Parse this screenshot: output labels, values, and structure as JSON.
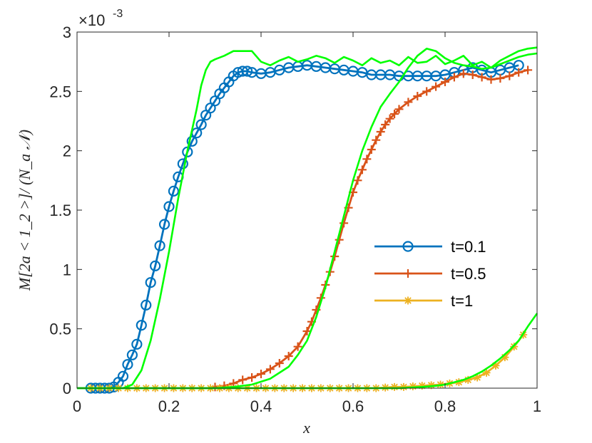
{
  "chart_data": {
    "type": "line",
    "xlabel": "x",
    "ylabel": "M[2a < 1_2 >]/ (N_a 𝒩)",
    "y_exponent_label": "×10",
    "y_exponent_value": "-3",
    "xlim": [
      0,
      1
    ],
    "ylim": [
      0,
      3
    ],
    "x_ticks": [
      0,
      0.2,
      0.4,
      0.6,
      0.8,
      1
    ],
    "x_tick_labels": [
      "0",
      "0.2",
      "0.4",
      "0.6",
      "0.8",
      "1"
    ],
    "y_ticks": [
      0,
      0.5,
      1,
      1.5,
      2,
      2.5,
      3
    ],
    "y_tick_labels": [
      "0",
      "0.5",
      "1",
      "1.5",
      "2",
      "2.5",
      "3"
    ],
    "grid": false,
    "legend_position": "right-middle",
    "series": [
      {
        "name": "t=0.1",
        "color": "#0072BD",
        "marker": "circle",
        "x": [
          0.03,
          0.04,
          0.05,
          0.06,
          0.07,
          0.08,
          0.09,
          0.1,
          0.11,
          0.12,
          0.13,
          0.14,
          0.15,
          0.16,
          0.17,
          0.18,
          0.19,
          0.2,
          0.21,
          0.22,
          0.23,
          0.24,
          0.25,
          0.26,
          0.27,
          0.28,
          0.29,
          0.3,
          0.31,
          0.32,
          0.33,
          0.34,
          0.35,
          0.36,
          0.37,
          0.38,
          0.4,
          0.42,
          0.44,
          0.46,
          0.48,
          0.5,
          0.52,
          0.54,
          0.56,
          0.58,
          0.6,
          0.62,
          0.64,
          0.66,
          0.68,
          0.7,
          0.72,
          0.74,
          0.76,
          0.78,
          0.8,
          0.82,
          0.84,
          0.86,
          0.88,
          0.9,
          0.92,
          0.94,
          0.96
        ],
        "values": [
          0,
          0,
          0,
          0,
          0,
          0.01,
          0.05,
          0.1,
          0.2,
          0.28,
          0.37,
          0.53,
          0.7,
          0.89,
          1.03,
          1.2,
          1.38,
          1.53,
          1.66,
          1.78,
          1.89,
          1.99,
          2.08,
          2.15,
          2.22,
          2.3,
          2.36,
          2.42,
          2.48,
          2.53,
          2.58,
          2.63,
          2.66,
          2.67,
          2.67,
          2.66,
          2.65,
          2.66,
          2.68,
          2.7,
          2.71,
          2.72,
          2.71,
          2.7,
          2.69,
          2.68,
          2.67,
          2.66,
          2.64,
          2.64,
          2.64,
          2.63,
          2.63,
          2.63,
          2.63,
          2.63,
          2.64,
          2.66,
          2.68,
          2.7,
          2.68,
          2.66,
          2.68,
          2.7,
          2.72
        ]
      },
      {
        "name": "t=0.5",
        "color": "#D95319",
        "marker": "plus",
        "x": [
          0.3,
          0.32,
          0.34,
          0.36,
          0.38,
          0.4,
          0.42,
          0.44,
          0.46,
          0.48,
          0.5,
          0.51,
          0.52,
          0.53,
          0.54,
          0.55,
          0.56,
          0.57,
          0.58,
          0.59,
          0.6,
          0.61,
          0.62,
          0.63,
          0.64,
          0.65,
          0.66,
          0.67,
          0.68,
          0.69,
          0.7,
          0.72,
          0.74,
          0.76,
          0.78,
          0.8,
          0.82,
          0.84,
          0.86,
          0.88,
          0.9,
          0.92,
          0.94,
          0.96,
          0.98
        ],
        "values": [
          0.01,
          0.02,
          0.04,
          0.07,
          0.09,
          0.12,
          0.16,
          0.21,
          0.27,
          0.35,
          0.48,
          0.56,
          0.66,
          0.76,
          0.87,
          0.98,
          1.11,
          1.25,
          1.39,
          1.52,
          1.65,
          1.75,
          1.84,
          1.93,
          2.01,
          2.09,
          2.16,
          2.22,
          2.27,
          2.31,
          2.35,
          2.41,
          2.46,
          2.5,
          2.54,
          2.58,
          2.62,
          2.65,
          2.64,
          2.62,
          2.6,
          2.61,
          2.63,
          2.66,
          2.68
        ]
      },
      {
        "name": "t=1",
        "color": "#EDB120",
        "marker": "asterisk",
        "x": [
          0.03,
          0.05,
          0.07,
          0.09,
          0.11,
          0.13,
          0.15,
          0.17,
          0.19,
          0.21,
          0.23,
          0.25,
          0.27,
          0.29,
          0.31,
          0.33,
          0.35,
          0.37,
          0.39,
          0.41,
          0.43,
          0.45,
          0.47,
          0.49,
          0.51,
          0.53,
          0.55,
          0.57,
          0.59,
          0.61,
          0.63,
          0.65,
          0.67,
          0.69,
          0.71,
          0.73,
          0.75,
          0.77,
          0.79,
          0.81,
          0.83,
          0.85,
          0.87,
          0.89,
          0.91,
          0.93,
          0.95,
          0.97
        ],
        "values": [
          0,
          0,
          0,
          0,
          0,
          0,
          0,
          0,
          0,
          0,
          0,
          0,
          0,
          0,
          0,
          0,
          0,
          0,
          0,
          0,
          0,
          0,
          0,
          0,
          0,
          0,
          0,
          0,
          0,
          0,
          0,
          0,
          0.005,
          0.01,
          0.01,
          0.015,
          0.02,
          0.025,
          0.03,
          0.04,
          0.05,
          0.07,
          0.09,
          0.13,
          0.19,
          0.26,
          0.35,
          0.45
        ]
      },
      {
        "name": "",
        "color": "#00FF00",
        "marker": "none",
        "x": [
          0,
          0.1,
          0.12,
          0.14,
          0.16,
          0.18,
          0.2,
          0.22,
          0.24,
          0.26,
          0.27,
          0.28,
          0.29,
          0.3,
          0.32,
          0.34,
          0.36,
          0.38,
          0.4,
          0.42,
          0.44,
          0.46,
          0.48,
          0.5,
          0.52,
          0.54,
          0.56,
          0.58,
          0.6,
          0.62,
          0.64,
          0.66,
          0.68,
          0.7,
          0.72,
          0.74,
          0.76,
          0.78,
          0.8,
          0.82,
          0.84,
          0.86,
          0.88,
          0.9,
          0.92,
          0.94,
          0.96,
          0.98,
          1.0
        ],
        "values": [
          0,
          0,
          0.03,
          0.15,
          0.4,
          0.75,
          1.15,
          1.6,
          2.0,
          2.35,
          2.55,
          2.68,
          2.75,
          2.77,
          2.8,
          2.84,
          2.84,
          2.84,
          2.75,
          2.72,
          2.76,
          2.79,
          2.75,
          2.77,
          2.8,
          2.78,
          2.74,
          2.79,
          2.76,
          2.72,
          2.78,
          2.74,
          2.76,
          2.72,
          2.79,
          2.74,
          2.75,
          2.8,
          2.73,
          2.76,
          2.8,
          2.72,
          2.75,
          2.7,
          2.76,
          2.8,
          2.84,
          2.86,
          2.87
        ]
      },
      {
        "name": "",
        "color": "#00FF00",
        "marker": "none",
        "x": [
          0,
          0.3,
          0.34,
          0.38,
          0.42,
          0.46,
          0.48,
          0.5,
          0.52,
          0.54,
          0.56,
          0.58,
          0.6,
          0.62,
          0.64,
          0.66,
          0.68,
          0.7,
          0.72,
          0.74,
          0.76,
          0.78,
          0.8,
          0.82,
          0.84,
          0.86,
          0.88,
          0.9,
          0.92,
          0.94,
          0.96,
          0.98,
          1.0
        ],
        "values": [
          0,
          0,
          0.01,
          0.03,
          0.08,
          0.18,
          0.28,
          0.4,
          0.6,
          0.85,
          1.15,
          1.45,
          1.75,
          2.0,
          2.2,
          2.37,
          2.48,
          2.58,
          2.7,
          2.8,
          2.86,
          2.84,
          2.78,
          2.74,
          2.72,
          2.71,
          2.69,
          2.7,
          2.73,
          2.76,
          2.79,
          2.81,
          2.82
        ]
      },
      {
        "name": "",
        "color": "#00FF00",
        "marker": "none",
        "x": [
          0,
          0.6,
          0.65,
          0.7,
          0.75,
          0.78,
          0.8,
          0.82,
          0.84,
          0.86,
          0.88,
          0.9,
          0.92,
          0.94,
          0.96,
          0.98,
          1.0
        ],
        "values": [
          0,
          0,
          0,
          0,
          0.01,
          0.02,
          0.03,
          0.05,
          0.07,
          0.1,
          0.14,
          0.19,
          0.25,
          0.32,
          0.4,
          0.52,
          0.63
        ]
      }
    ]
  }
}
